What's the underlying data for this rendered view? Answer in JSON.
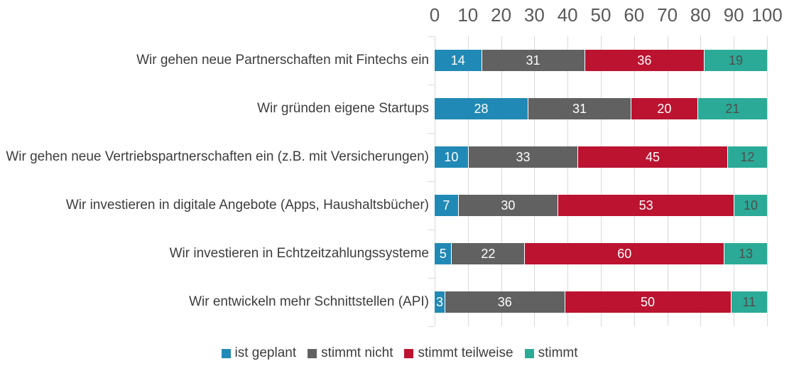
{
  "chart_data": {
    "type": "bar",
    "stacked": true,
    "orientation": "horizontal",
    "title": "",
    "categories": [
      "Wir gehen neue Partnerschaften mit Fintechs ein",
      "Wir gründen eigene Startups",
      "Wir gehen neue Vertriebspartnerschaften ein (z.B. mit Versicherungen)",
      "Wir investieren in digitale Angebote (Apps, Haushaltsbücher)",
      "Wir investieren in Echtzeitzahlungssysteme",
      "Wir entwickeln mehr Schnittstellen (API)"
    ],
    "series": [
      {
        "name": "ist geplant",
        "color": "#2189b5",
        "value_label_color": "#ffffff",
        "values": [
          14,
          28,
          10,
          7,
          5,
          3
        ]
      },
      {
        "name": "stimmt nicht",
        "color": "#616161",
        "value_label_color": "#ffffff",
        "values": [
          31,
          31,
          33,
          30,
          22,
          36
        ]
      },
      {
        "name": "stimmt teilweise",
        "color": "#bb1330",
        "value_label_color": "#ffffff",
        "values": [
          36,
          20,
          45,
          53,
          60,
          50
        ]
      },
      {
        "name": "stimmt",
        "color": "#2bab97",
        "value_label_color": "#4d4d4d",
        "values": [
          19,
          21,
          12,
          10,
          13,
          11
        ]
      }
    ],
    "x_axis": {
      "position": "top",
      "min": 0,
      "max": 100,
      "tick_interval": 10,
      "ticks": [
        0,
        10,
        20,
        30,
        40,
        50,
        60,
        70,
        80,
        90,
        100
      ],
      "tick_label_color": "#595959"
    },
    "legend": {
      "position": "bottom",
      "entries": [
        "ist geplant",
        "stimmt nicht",
        "stimmt teilweise",
        "stimmt"
      ]
    },
    "grid": true,
    "gridline_color": "#d9d9d9",
    "background": "#ffffff"
  }
}
